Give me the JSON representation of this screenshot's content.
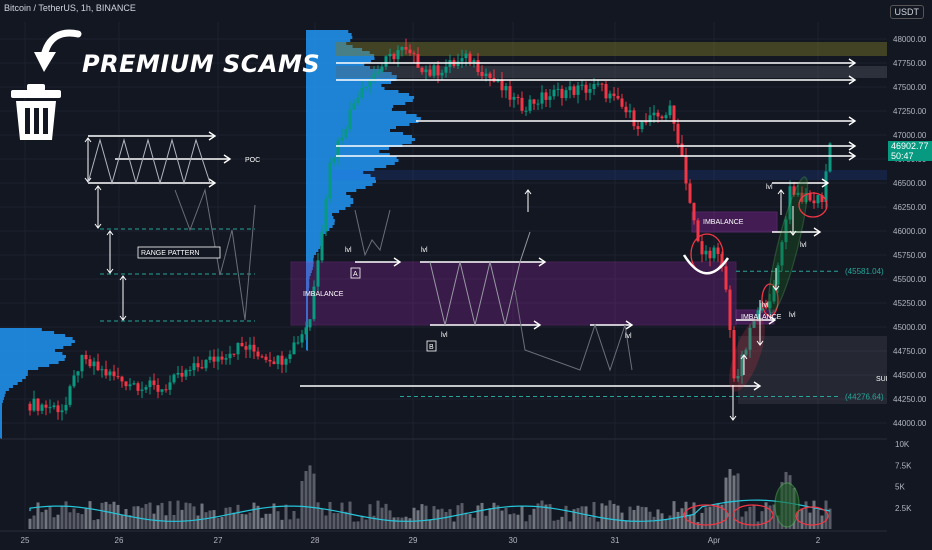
{
  "header": {
    "title": "Bitcoin / TetherUS, 1h, BINANCE",
    "currency": "USDT"
  },
  "promo": {
    "text": "PREMIUM SCAMS",
    "icons": [
      "curved-arrow-icon",
      "trash-can-icon"
    ]
  },
  "price_tag": {
    "price": "46902.77",
    "countdown": "50:47"
  },
  "colors": {
    "bg": "#131722",
    "up": "#089981",
    "down": "#f23645",
    "profile": "#2196f3",
    "imbalance": "#9c27b0",
    "range_grid": "#26a69a"
  },
  "chart_data": {
    "type": "candlestick",
    "y_range": [
      43900,
      48150
    ],
    "y_ticks": [
      "48000.00",
      "47750.00",
      "47500.00",
      "47250.00",
      "47000.00",
      "46750.00",
      "46500.00",
      "46250.00",
      "46000.00",
      "45750.00",
      "45500.00",
      "45250.00",
      "45000.00",
      "44750.00",
      "44500.00",
      "44250.00",
      "44000.00"
    ],
    "y_tick_values": [
      48000,
      47750,
      47500,
      47250,
      47000,
      46750,
      46500,
      46250,
      46000,
      45750,
      45500,
      45250,
      45000,
      44750,
      44500,
      44250,
      44000
    ],
    "x_ticks": [
      "25",
      "26",
      "27",
      "28",
      "29",
      "30",
      "31",
      "Apr",
      "2"
    ],
    "volume_ticks": [
      "10K",
      "7.5K",
      "5K",
      "2.5K"
    ],
    "volume_tick_values": [
      10000,
      7500,
      5000,
      2500
    ],
    "key_levels": [
      {
        "label": "(45581.04)",
        "value": 45581.04
      },
      {
        "label": "(44276.64)",
        "value": 44276.64
      }
    ],
    "annotations": {
      "poc": "POC",
      "range_pattern": "RANGE PATTERN",
      "imbalance_main": "IMBALANCE",
      "imbalance_upper": "IMBALANCE",
      "imbalance_lower": "IMBALANCE",
      "marker_a": "A",
      "marker_b": "B",
      "sup": "SUP",
      "lvl": "lvl"
    }
  }
}
